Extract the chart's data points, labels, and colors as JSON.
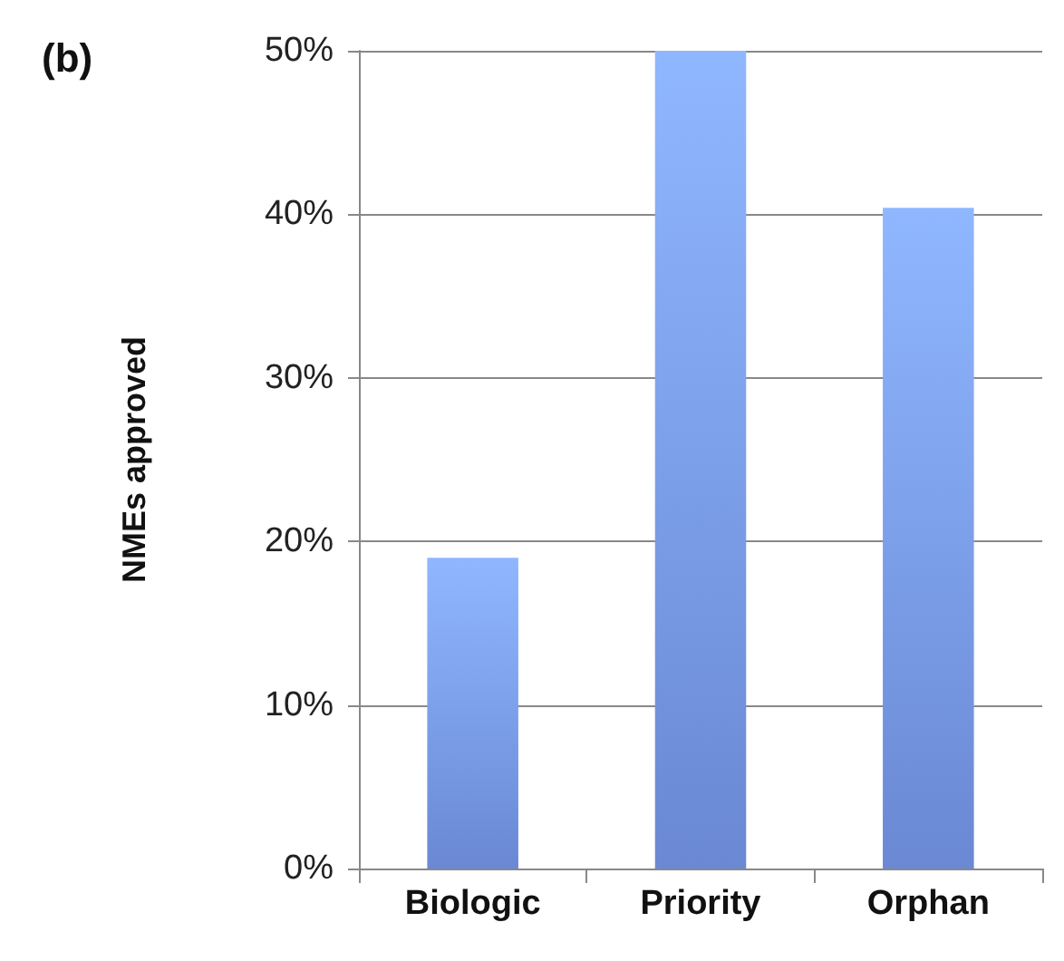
{
  "chart_data": {
    "type": "bar",
    "title": "(b)",
    "ylabel": "NMEs approved",
    "categories": [
      "Biologic",
      "Priority",
      "Orphan"
    ],
    "values": [
      19,
      50,
      40.4
    ],
    "color": "#6a88d4",
    "ylim": [
      0,
      50
    ],
    "yticks": [
      {
        "value": 0,
        "label": "0%"
      },
      {
        "value": 10,
        "label": "10%"
      },
      {
        "value": 20,
        "label": "20%"
      },
      {
        "value": 30,
        "label": "30%"
      },
      {
        "value": 40,
        "label": "40%"
      },
      {
        "value": 50,
        "label": "50%"
      }
    ],
    "grid": "y"
  }
}
